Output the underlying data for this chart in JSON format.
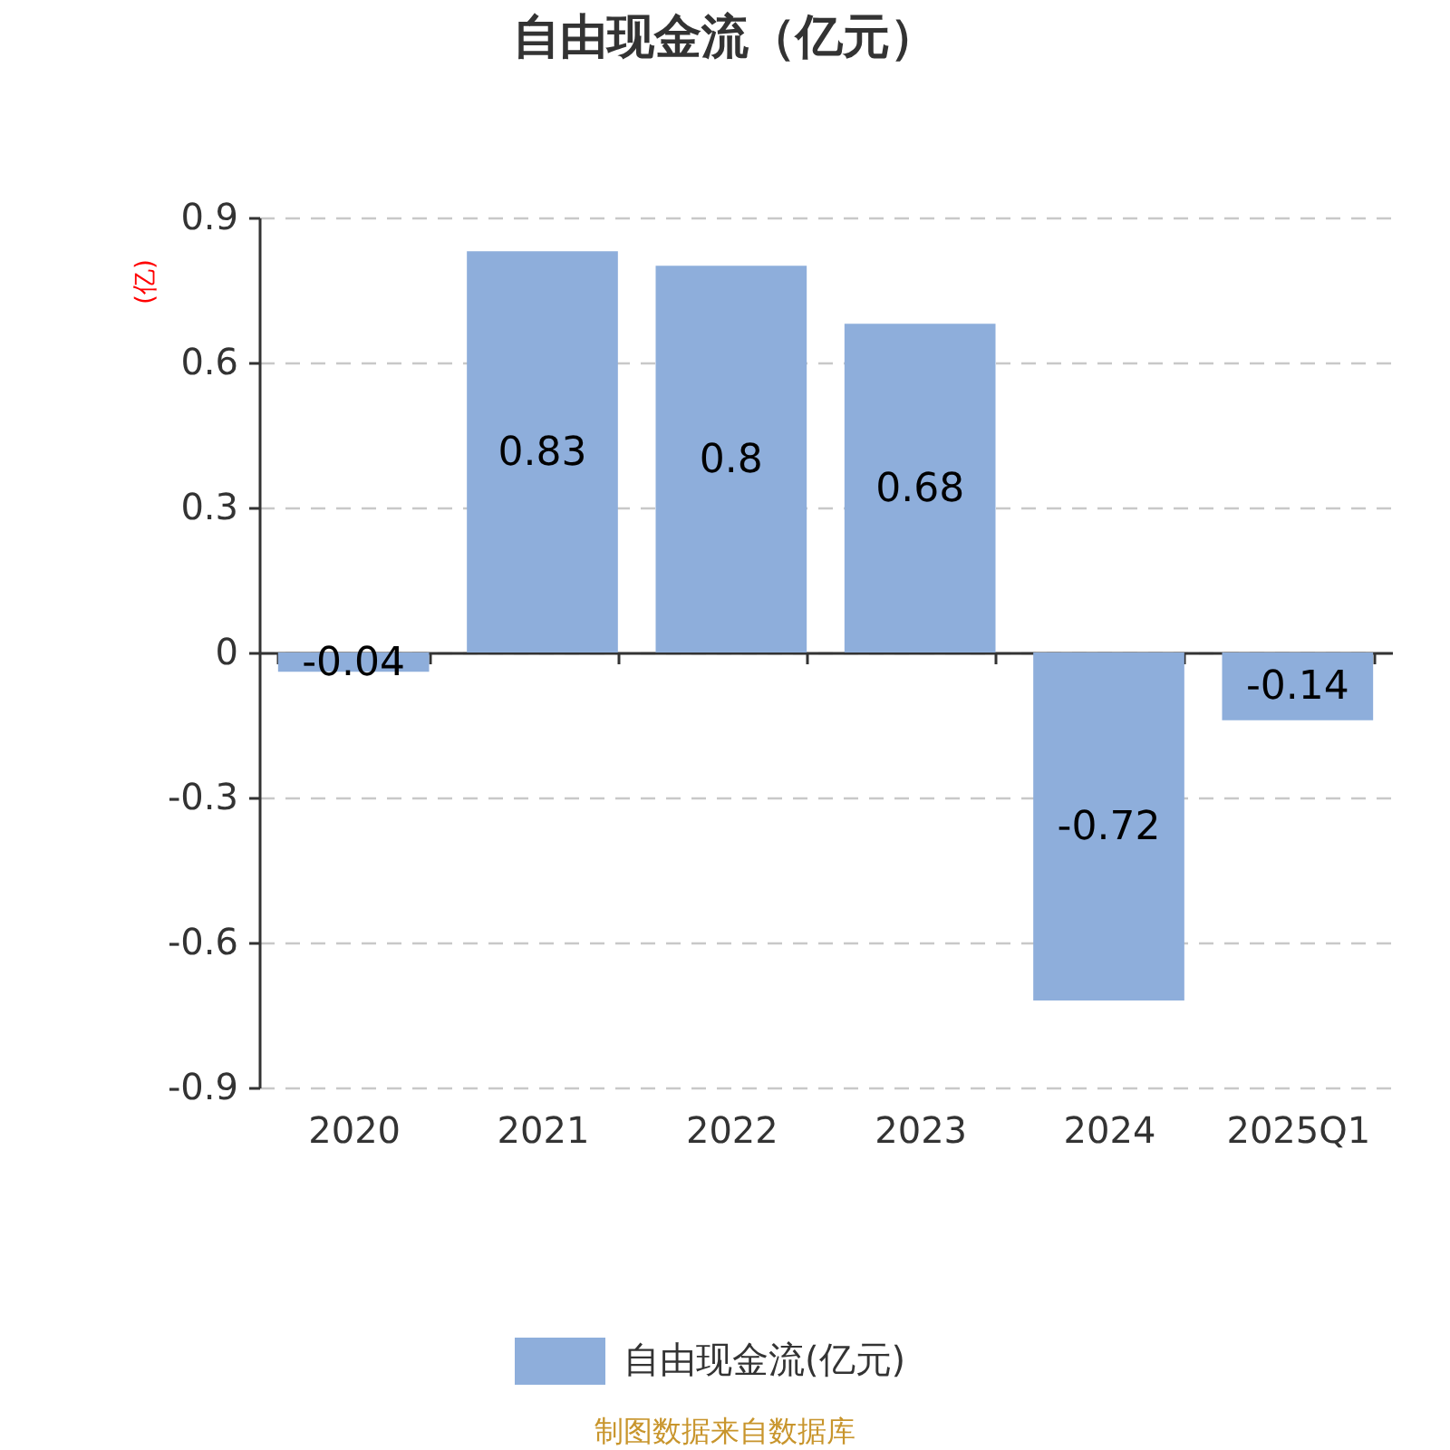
{
  "chart_data": {
    "type": "bar",
    "title": "自由现金流（亿元）",
    "ylabel": "(亿)",
    "categories": [
      "2020",
      "2021",
      "2022",
      "2023",
      "2024",
      "2025Q1"
    ],
    "series": [
      {
        "name": "自由现金流(亿元)",
        "color": "#8eaedb",
        "values": [
          -0.04,
          0.83,
          0.8,
          0.68,
          -0.72,
          -0.14
        ]
      }
    ],
    "ylim": [
      -0.9,
      0.9
    ],
    "yticks": [
      -0.9,
      -0.6,
      -0.3,
      0,
      0.3,
      0.6,
      0.9
    ],
    "grid": "y",
    "legend": "bottom",
    "data_labels": true,
    "annotations": [
      "制图数据来自数据库"
    ]
  }
}
